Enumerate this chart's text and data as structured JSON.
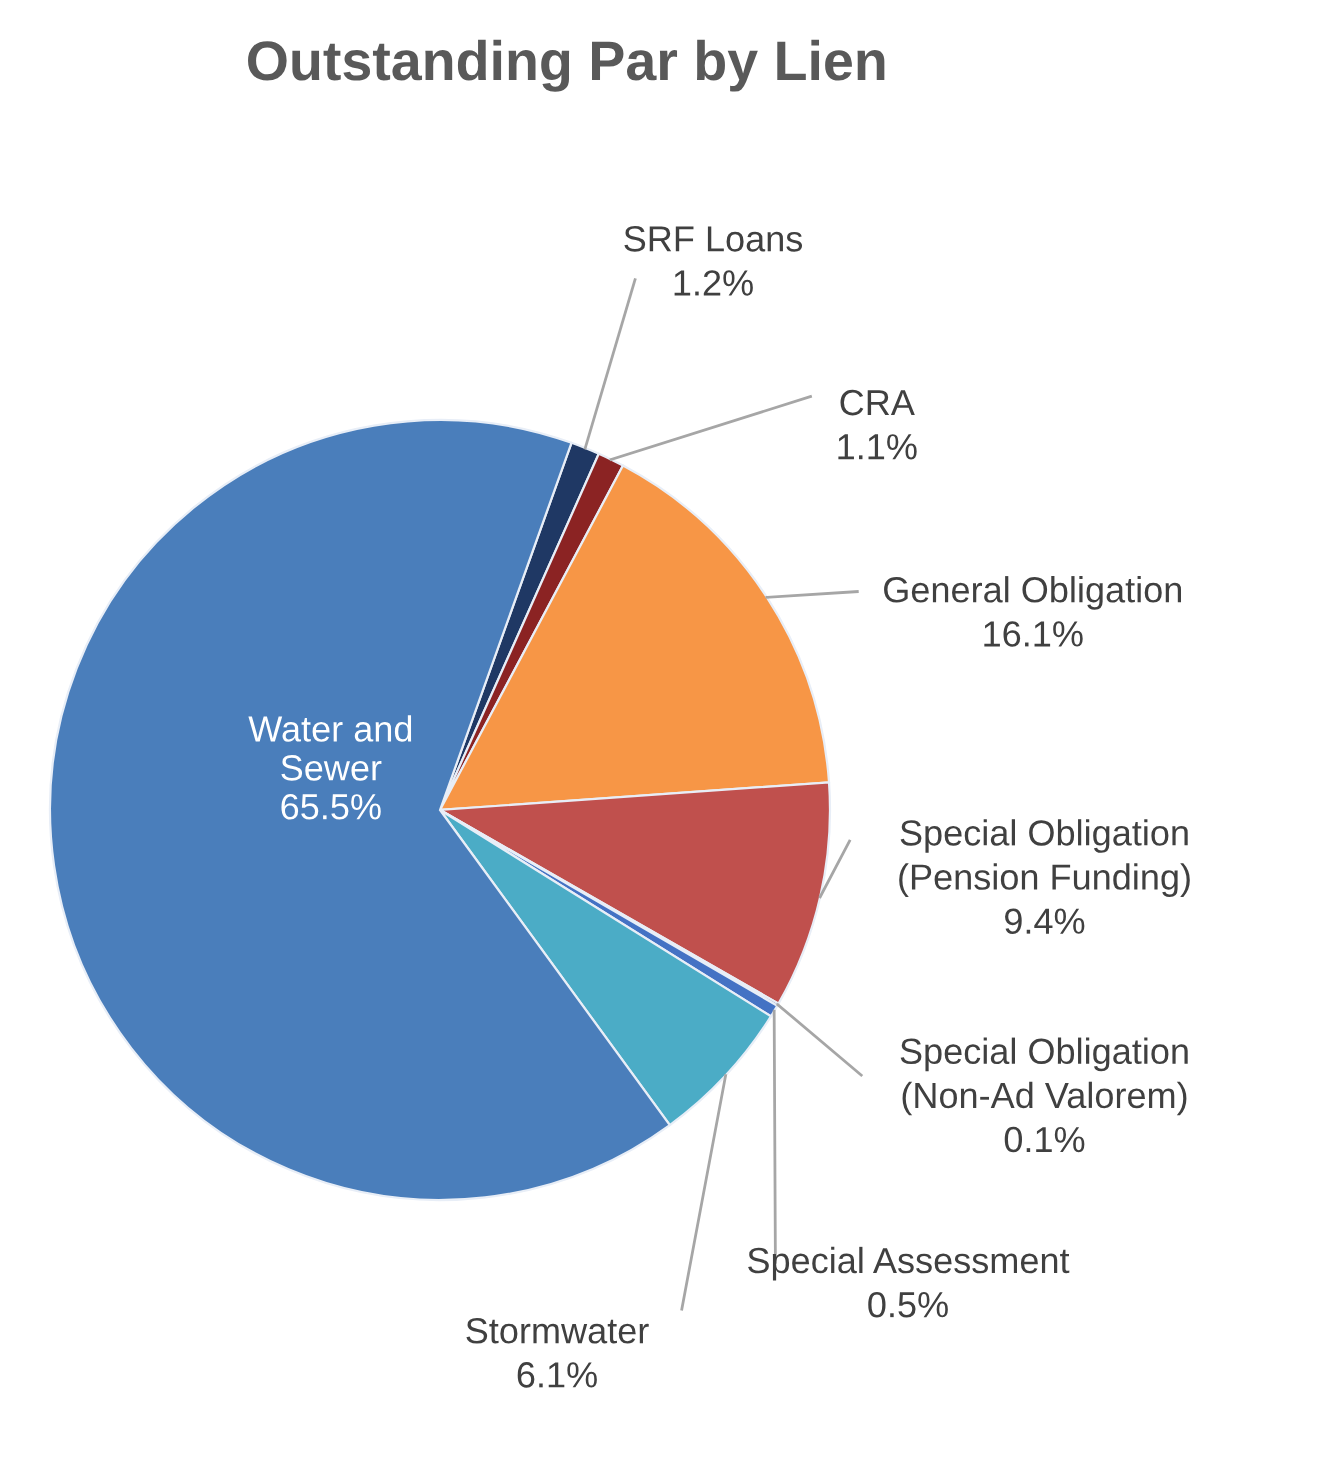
{
  "chart_data": {
    "type": "pie",
    "title": "Outstanding Par by Lien",
    "categories": [
      "SRF Loans",
      "CRA",
      "General Obligation",
      "Special Obligation\n(Pension Funding)",
      "Special Obligation\n(Non-Ad Valorem)",
      "Special Assessment",
      "Stormwater",
      "Water and\nSewer"
    ],
    "values": [
      1.2,
      1.1,
      16.1,
      9.4,
      0.1,
      0.5,
      6.1,
      65.5
    ],
    "value_labels": [
      "1.2%",
      "1.1%",
      "16.1%",
      "9.4%",
      "0.1%",
      "0.5%",
      "6.1%",
      "65.5%"
    ],
    "colors": [
      "#1f3864",
      "#8b2323",
      "#f79646",
      "#c0504d",
      "#2f4f8f",
      "#4472c4",
      "#4bacc6",
      "#4a7ebb"
    ]
  }
}
